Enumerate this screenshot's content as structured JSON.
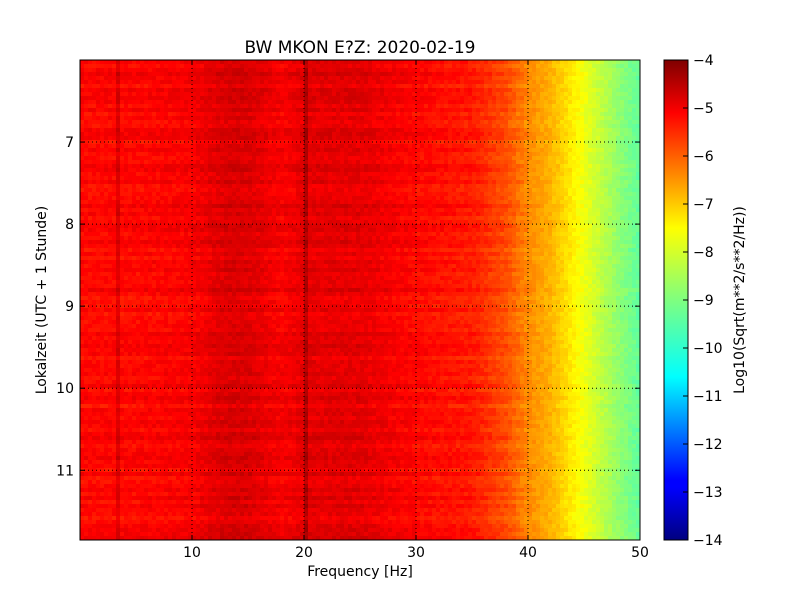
{
  "chart_data": {
    "type": "heatmap",
    "title": "BW MKON E?Z: 2020-02-19",
    "xlabel": "Frequency [Hz]",
    "ylabel": "Lokalzeit (UTC + 1 Stunde)",
    "xlim": [
      0,
      50
    ],
    "ylim": [
      11.85,
      6.0
    ],
    "x_ticks": [
      10,
      20,
      30,
      40,
      50
    ],
    "y_ticks": [
      7,
      8,
      9,
      10,
      11
    ],
    "grid": true,
    "colorbar": {
      "label": "Log10(Sqrt(m**2/s**2/Hz))",
      "range": [
        -14,
        -4
      ],
      "ticks": [
        -4,
        -5,
        -6,
        -7,
        -8,
        -9,
        -10,
        -11,
        -12,
        -13,
        -14
      ],
      "colormap": "jet"
    },
    "approx_level_profile": {
      "description_freq_hz": [
        0,
        5,
        10,
        13,
        15,
        18,
        20,
        25,
        30,
        35,
        38,
        40,
        42,
        44,
        46,
        48,
        50
      ],
      "level": [
        -5.3,
        -5.3,
        -5.2,
        -4.9,
        -4.9,
        -5.2,
        -5.0,
        -5.0,
        -5.3,
        -5.5,
        -6.0,
        -6.6,
        -7.0,
        -7.6,
        -8.2,
        -8.8,
        -9.3
      ]
    }
  }
}
